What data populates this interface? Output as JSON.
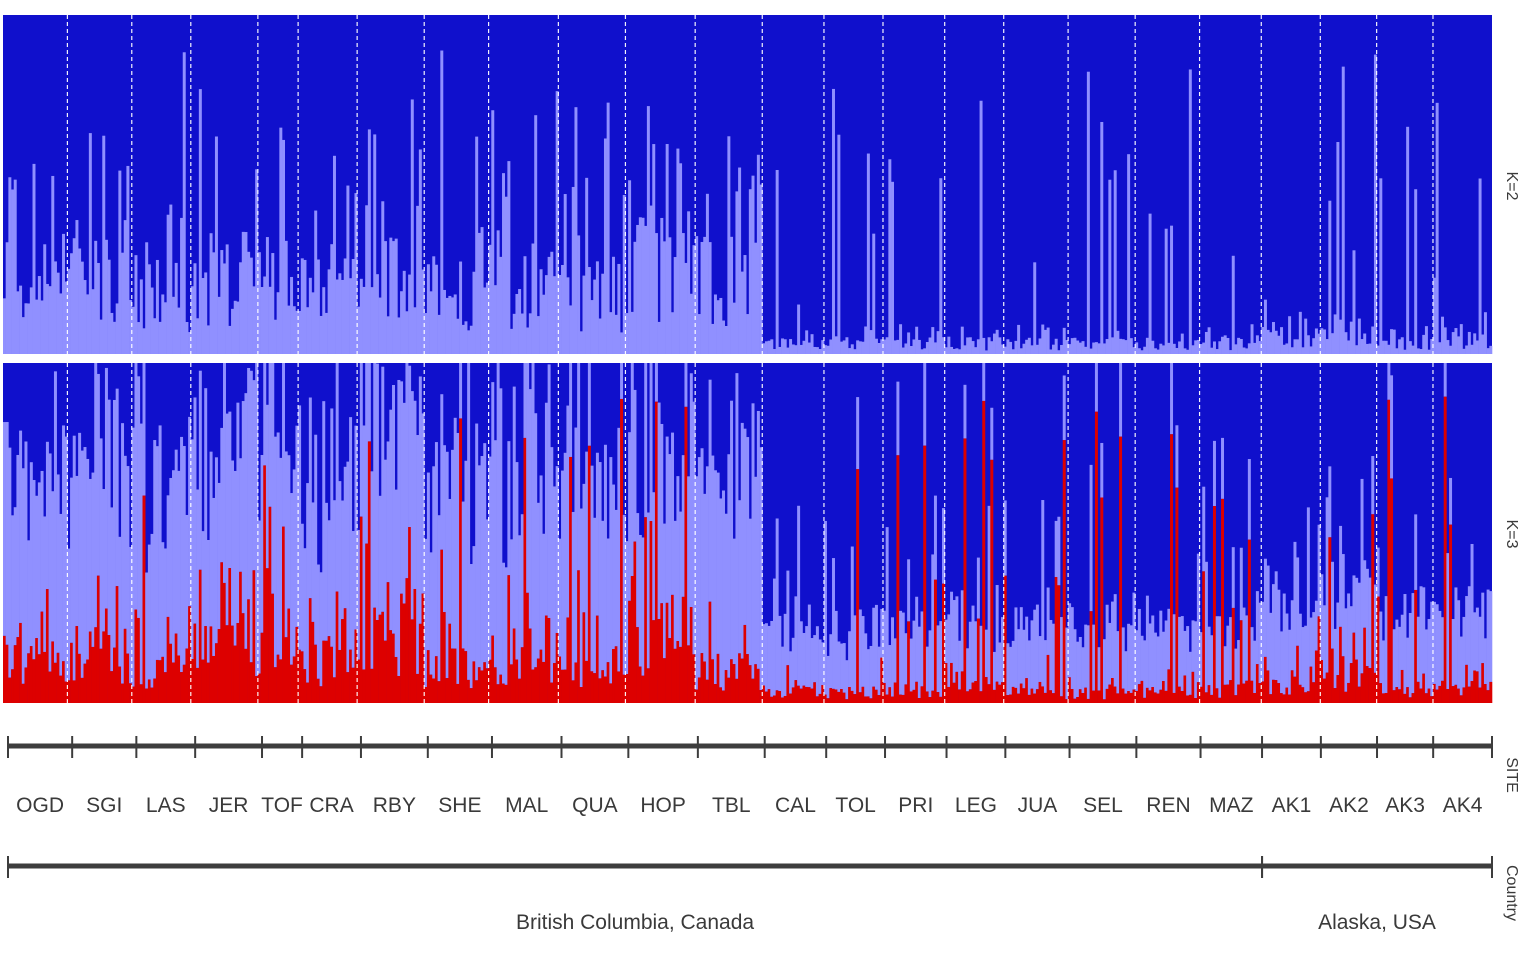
{
  "chart_data": {
    "type": "bar",
    "subtype": "stacked-admixture",
    "panels": [
      {
        "label": "K=2",
        "clusters": 2,
        "colors": [
          "#9090ff",
          "#1010cc"
        ]
      },
      {
        "label": "K=3",
        "clusters": 3,
        "colors": [
          "#dd0000",
          "#9090ff",
          "#1010cc"
        ]
      }
    ],
    "ylim": [
      0,
      1
    ],
    "site_axis_label": "SITE",
    "country_axis_label": "Country",
    "sites": [
      {
        "name": "OGD",
        "n": 24,
        "k2_mean": 0.22,
        "k3_red": 0.12,
        "k3_light": 0.55,
        "country": "British Columbia, Canada"
      },
      {
        "name": "SGI",
        "n": 24,
        "k2_mean": 0.22,
        "k3_red": 0.14,
        "k3_light": 0.55,
        "country": "British Columbia, Canada"
      },
      {
        "name": "LAS",
        "n": 22,
        "k2_mean": 0.18,
        "k3_red": 0.1,
        "k3_light": 0.55,
        "country": "British Columbia, Canada"
      },
      {
        "name": "JER",
        "n": 25,
        "k2_mean": 0.22,
        "k3_red": 0.15,
        "k3_light": 0.55,
        "country": "British Columbia, Canada"
      },
      {
        "name": "TOF",
        "n": 15,
        "k2_mean": 0.22,
        "k3_red": 0.2,
        "k3_light": 0.55,
        "country": "British Columbia, Canada"
      },
      {
        "name": "CRA",
        "n": 22,
        "k2_mean": 0.18,
        "k3_red": 0.14,
        "k3_light": 0.55,
        "country": "British Columbia, Canada"
      },
      {
        "name": "RBY",
        "n": 25,
        "k2_mean": 0.28,
        "k3_red": 0.22,
        "k3_light": 0.55,
        "country": "British Columbia, Canada"
      },
      {
        "name": "SHE",
        "n": 24,
        "k2_mean": 0.18,
        "k3_red": 0.1,
        "k3_light": 0.55,
        "country": "British Columbia, Canada"
      },
      {
        "name": "MAL",
        "n": 26,
        "k2_mean": 0.2,
        "k3_red": 0.14,
        "k3_light": 0.55,
        "country": "British Columbia, Canada"
      },
      {
        "name": "QUA",
        "n": 25,
        "k2_mean": 0.18,
        "k3_red": 0.1,
        "k3_light": 0.55,
        "country": "British Columbia, Canada"
      },
      {
        "name": "HOP",
        "n": 26,
        "k2_mean": 0.25,
        "k3_red": 0.2,
        "k3_light": 0.55,
        "country": "British Columbia, Canada"
      },
      {
        "name": "TBL",
        "n": 25,
        "k2_mean": 0.22,
        "k3_red": 0.1,
        "k3_light": 0.55,
        "country": "British Columbia, Canada"
      },
      {
        "name": "CAL",
        "n": 23,
        "k2_mean": 0.03,
        "k3_red": 0.04,
        "k3_light": 0.2,
        "country": "British Columbia, Canada"
      },
      {
        "name": "TOL",
        "n": 22,
        "k2_mean": 0.03,
        "k3_red": 0.03,
        "k3_light": 0.18,
        "country": "British Columbia, Canada"
      },
      {
        "name": "PRI",
        "n": 23,
        "k2_mean": 0.03,
        "k3_red": 0.04,
        "k3_light": 0.18,
        "country": "British Columbia, Canada"
      },
      {
        "name": "LEG",
        "n": 22,
        "k2_mean": 0.03,
        "k3_red": 0.04,
        "k3_light": 0.18,
        "country": "British Columbia, Canada"
      },
      {
        "name": "JUA",
        "n": 24,
        "k2_mean": 0.03,
        "k3_red": 0.03,
        "k3_light": 0.18,
        "country": "British Columbia, Canada"
      },
      {
        "name": "SEL",
        "n": 25,
        "k2_mean": 0.03,
        "k3_red": 0.03,
        "k3_light": 0.18,
        "country": "British Columbia, Canada"
      },
      {
        "name": "REN",
        "n": 24,
        "k2_mean": 0.03,
        "k3_red": 0.04,
        "k3_light": 0.18,
        "country": "British Columbia, Canada"
      },
      {
        "name": "MAZ",
        "n": 23,
        "k2_mean": 0.03,
        "k3_red": 0.04,
        "k3_light": 0.18,
        "country": "British Columbia, Canada"
      },
      {
        "name": "AK1",
        "n": 22,
        "k2_mean": 0.05,
        "k3_red": 0.06,
        "k3_light": 0.22,
        "country": "Alaska, USA"
      },
      {
        "name": "AK2",
        "n": 21,
        "k2_mean": 0.05,
        "k3_red": 0.08,
        "k3_light": 0.25,
        "country": "Alaska, USA"
      },
      {
        "name": "AK3",
        "n": 21,
        "k2_mean": 0.03,
        "k3_red": 0.04,
        "k3_light": 0.22,
        "country": "Alaska, USA"
      },
      {
        "name": "AK4",
        "n": 22,
        "k2_mean": 0.04,
        "k3_red": 0.04,
        "k3_light": 0.22,
        "country": "Alaska, USA"
      }
    ],
    "countries": [
      {
        "name": "British Columbia, Canada",
        "first_site": "OGD",
        "last_site": "MAZ"
      },
      {
        "name": "Alaska, USA",
        "first_site": "AK1",
        "last_site": "AK4"
      }
    ]
  }
}
